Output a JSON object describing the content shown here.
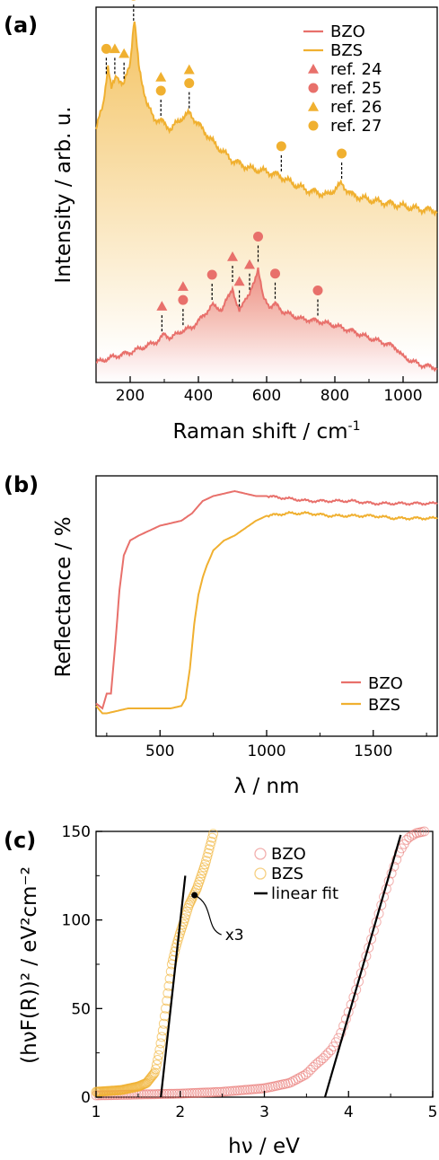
{
  "figure": {
    "panel_labels": [
      "(a)",
      "(b)",
      "(c)"
    ]
  },
  "chart_data": [
    {
      "type": "line",
      "panel": "(a)",
      "xlabel": "Raman shift / cm",
      "xlabel_sup": "-1",
      "ylabel": "Intensity / arb. u.",
      "xlim": [
        100,
        1100
      ],
      "x_ticks": [
        200,
        400,
        600,
        800,
        1000
      ],
      "y_ticks": [],
      "grid": false,
      "legend_position": "top-right",
      "colors": {
        "BZO": "#e8706b",
        "BZS": "#f0b030"
      },
      "series": [
        {
          "name": "BZO",
          "x": [
            100,
            150,
            200,
            250,
            280,
            300,
            320,
            350,
            380,
            410,
            440,
            470,
            500,
            510,
            520,
            535,
            550,
            565,
            575,
            590,
            610,
            625,
            650,
            700,
            750,
            800,
            850,
            900,
            950,
            980,
            1000,
            1050,
            1100
          ],
          "y": [
            0.05,
            0.1,
            0.14,
            0.2,
            0.24,
            0.3,
            0.27,
            0.33,
            0.36,
            0.45,
            0.56,
            0.52,
            0.72,
            0.58,
            0.5,
            0.62,
            0.65,
            0.78,
            0.9,
            0.62,
            0.55,
            0.57,
            0.5,
            0.44,
            0.42,
            0.38,
            0.33,
            0.27,
            0.22,
            0.18,
            0.1,
            0.03,
            0.0
          ]
        },
        {
          "name": "BZS",
          "x": [
            100,
            120,
            135,
            145,
            160,
            180,
            200,
            212,
            225,
            250,
            270,
            290,
            320,
            350,
            375,
            400,
            450,
            500,
            550,
            600,
            640,
            680,
            720,
            780,
            800,
            820,
            850,
            900,
            1000,
            1050,
            1100
          ],
          "y": [
            0.55,
            0.7,
            0.95,
            0.8,
            0.9,
            0.82,
            0.98,
            1.25,
            0.95,
            0.7,
            0.62,
            0.6,
            0.55,
            0.62,
            0.65,
            0.58,
            0.45,
            0.35,
            0.3,
            0.28,
            0.25,
            0.2,
            0.16,
            0.13,
            0.17,
            0.2,
            0.13,
            0.1,
            0.06,
            0.04,
            0.03
          ]
        }
      ],
      "markers": [
        {
          "name": "ref. 24",
          "shape": "triangle",
          "color": "#e8706b"
        },
        {
          "name": "ref. 25",
          "shape": "circle",
          "color": "#e8706b"
        },
        {
          "name": "ref. 26",
          "shape": "triangle",
          "color": "#f0b030"
        },
        {
          "name": "ref. 27",
          "shape": "circle",
          "color": "#f0b030"
        }
      ],
      "bzo_marker_positions": [
        {
          "x": 293,
          "symbols": [
            "ref. 24"
          ]
        },
        {
          "x": 355,
          "symbols": [
            "ref. 24",
            "ref. 25"
          ]
        },
        {
          "x": 440,
          "symbols": [
            "ref. 25"
          ]
        },
        {
          "x": 500,
          "symbols": [
            "ref. 24"
          ]
        },
        {
          "x": 520,
          "symbols": [
            "ref. 24"
          ]
        },
        {
          "x": 550,
          "symbols": [
            "ref. 24"
          ]
        },
        {
          "x": 575,
          "symbols": [
            "ref. 25"
          ]
        },
        {
          "x": 625,
          "symbols": [
            "ref. 25"
          ]
        },
        {
          "x": 750,
          "symbols": [
            "ref. 25"
          ]
        }
      ],
      "bzs_marker_positions": [
        {
          "x": 130,
          "symbols": [
            "ref. 27"
          ]
        },
        {
          "x": 155,
          "symbols": [
            "ref. 26"
          ]
        },
        {
          "x": 182,
          "symbols": [
            "ref. 26"
          ]
        },
        {
          "x": 210,
          "symbols": [
            "ref. 26",
            "ref. 27"
          ]
        },
        {
          "x": 290,
          "symbols": [
            "ref. 26",
            "ref. 27"
          ]
        },
        {
          "x": 373,
          "symbols": [
            "ref. 26",
            "ref. 27"
          ]
        },
        {
          "x": 643,
          "symbols": [
            "ref. 27"
          ]
        },
        {
          "x": 820,
          "symbols": [
            "ref. 27"
          ]
        }
      ]
    },
    {
      "type": "line",
      "panel": "(b)",
      "xlabel": "λ / nm",
      "ylabel": "Reflectance / %",
      "xlim": [
        200,
        1800
      ],
      "x_ticks": [
        500,
        1000,
        1500
      ],
      "y_ticks": [],
      "grid": false,
      "legend_position": "bottom-right",
      "series": [
        {
          "name": "BZO",
          "x": [
            200,
            230,
            250,
            270,
            290,
            310,
            330,
            360,
            400,
            450,
            500,
            550,
            600,
            650,
            700,
            750,
            800,
            850,
            900,
            950,
            1000,
            1100,
            1200,
            1300,
            1400,
            1500,
            1600,
            1700,
            1800
          ],
          "y": [
            0.06,
            0.04,
            0.1,
            0.1,
            0.3,
            0.52,
            0.66,
            0.72,
            0.74,
            0.76,
            0.78,
            0.79,
            0.8,
            0.83,
            0.88,
            0.9,
            0.91,
            0.92,
            0.91,
            0.9,
            0.9,
            0.89,
            0.88,
            0.88,
            0.88,
            0.87,
            0.87,
            0.87,
            0.87
          ]
        },
        {
          "name": "BZS",
          "x": [
            200,
            230,
            250,
            300,
            350,
            400,
            450,
            500,
            550,
            600,
            620,
            640,
            660,
            680,
            700,
            720,
            750,
            800,
            850,
            900,
            950,
            1000,
            1100,
            1200,
            1300,
            1400,
            1500,
            1600,
            1700,
            1800
          ],
          "y": [
            0.05,
            0.02,
            0.02,
            0.03,
            0.04,
            0.04,
            0.04,
            0.04,
            0.04,
            0.05,
            0.08,
            0.2,
            0.38,
            0.5,
            0.57,
            0.62,
            0.68,
            0.72,
            0.74,
            0.77,
            0.8,
            0.82,
            0.83,
            0.83,
            0.82,
            0.82,
            0.82,
            0.81,
            0.81,
            0.81
          ]
        }
      ]
    },
    {
      "type": "scatter",
      "panel": "(c)",
      "xlabel": "hν / eV",
      "ylabel": "(hνF(R))² / eV²cm⁻²",
      "xlim": [
        1,
        5
      ],
      "ylim": [
        0,
        150
      ],
      "x_ticks": [
        1,
        2,
        3,
        4,
        5
      ],
      "y_ticks": [
        0,
        50,
        100,
        150
      ],
      "grid": false,
      "legend_position": "top-right",
      "series": [
        {
          "name": "BZO",
          "x": [
            1.0,
            1.5,
            2.0,
            2.5,
            3.0,
            3.3,
            3.5,
            3.6,
            3.7,
            3.8,
            3.9,
            4.0,
            4.1,
            4.2,
            4.3,
            4.4,
            4.5,
            4.6,
            4.7,
            4.8,
            4.9
          ],
          "y": [
            1,
            1.5,
            2,
            3,
            5,
            8,
            13,
            18,
            22,
            27,
            35,
            48,
            62,
            78,
            94,
            110,
            125,
            138,
            146,
            149,
            150
          ]
        },
        {
          "name": "BZS",
          "x": [
            1.0,
            1.3,
            1.5,
            1.6,
            1.7,
            1.75,
            1.8,
            1.85,
            1.9,
            1.95,
            2.0,
            2.05,
            2.1,
            2.15,
            2.2,
            2.3,
            2.4
          ],
          "y": [
            3,
            4,
            6,
            8,
            14,
            25,
            40,
            58,
            75,
            85,
            93,
            100,
            108,
            113,
            118,
            132,
            150
          ]
        },
        {
          "name": "linear fit",
          "segments": [
            {
              "x": [
                1.77,
                2.06
              ],
              "y": [
                0,
                125
              ]
            },
            {
              "x": [
                3.72,
                4.62
              ],
              "y": [
                0,
                148
              ]
            }
          ]
        }
      ],
      "annotation": {
        "text": "x3",
        "x": 2.17,
        "y": 114
      }
    }
  ]
}
